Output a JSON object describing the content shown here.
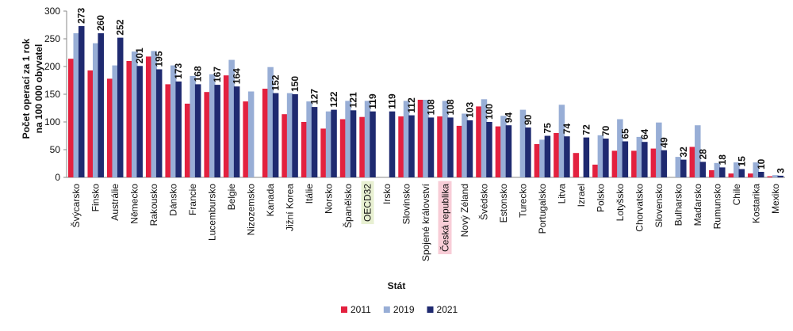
{
  "chart_data": {
    "type": "bar",
    "y_label": [
      "Počet operací za 1 rok",
      "na 100 000 obyvatel"
    ],
    "x_label": "Stát",
    "categories": [
      "Švýcarsko",
      "Finsko",
      "Austrálie",
      "Německo",
      "Rakousko",
      "Dánsko",
      "Francie",
      "Lucembursko",
      "Belgie",
      "Nizozemsko",
      "Kanada",
      "Jižní Korea",
      "Itálie",
      "Norsko",
      "Španělsko",
      "OECD32",
      "Irsko",
      "Slovinsko",
      "Spojené království",
      "Česká republika",
      "Nový Zéland",
      "Švédsko",
      "Estonsko",
      "Turecko",
      "Portugalsko",
      "Litva",
      "Izrael",
      "Polsko",
      "Lotyšsko",
      "Chorvatsko",
      "Slovensko",
      "Bulharsko",
      "Maďarsko",
      "Rumunsko",
      "Chile",
      "Kostarika",
      "Mexiko"
    ],
    "category_backgrounds": [
      null,
      null,
      null,
      null,
      null,
      null,
      null,
      null,
      null,
      null,
      null,
      null,
      null,
      null,
      null,
      "#e8f0d2",
      null,
      null,
      null,
      "#f8cdd7",
      null,
      null,
      null,
      null,
      null,
      null,
      null,
      null,
      null,
      null,
      null,
      null,
      null,
      null,
      null,
      null,
      null
    ],
    "series": [
      {
        "name": "2011",
        "color": "#e3213f",
        "values": [
          214,
          193,
          178,
          210,
          218,
          168,
          133,
          154,
          184,
          137,
          160,
          114,
          100,
          88,
          105,
          109,
          null,
          110,
          140,
          110,
          93,
          128,
          92,
          null,
          60,
          80,
          44,
          23,
          48,
          48,
          52,
          null,
          55,
          13,
          7,
          7,
          2
        ]
      },
      {
        "name": "2019",
        "color": "#98aed6",
        "values": [
          260,
          242,
          202,
          227,
          228,
          202,
          183,
          186,
          212,
          155,
          199,
          152,
          137,
          119,
          138,
          138,
          null,
          138,
          140,
          138,
          115,
          141,
          111,
          122,
          68,
          131,
          null,
          76,
          105,
          73,
          99,
          37,
          94,
          26,
          27,
          27,
          4
        ]
      },
      {
        "name": "2021",
        "color": "#1f2a70",
        "values": [
          273,
          260,
          252,
          201,
          195,
          173,
          168,
          167,
          164,
          null,
          152,
          150,
          127,
          122,
          121,
          119,
          119,
          112,
          108,
          108,
          103,
          100,
          94,
          90,
          75,
          74,
          72,
          70,
          65,
          64,
          49,
          32,
          28,
          18,
          15,
          10,
          3
        ],
        "data_labels": true
      }
    ],
    "ylim": [
      0,
      300
    ],
    "yticks": [
      0,
      50,
      100,
      150,
      200,
      250,
      300
    ],
    "grid": false,
    "legend": "bottom"
  }
}
